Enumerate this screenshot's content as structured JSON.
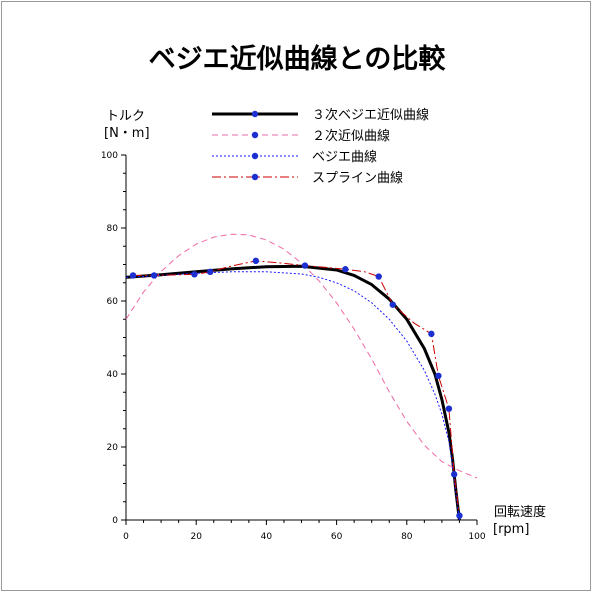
{
  "chart_data": {
    "type": "line",
    "title": "ベジエ近似曲線との比較",
    "ylabel_line1": "トルク",
    "ylabel_line2": "[N・m]",
    "xlabel_line1": "回転速度",
    "xlabel_line2": "[rpm]",
    "xlim": [
      0,
      100
    ],
    "ylim": [
      0,
      100
    ],
    "xticks": [
      0,
      20,
      40,
      60,
      80,
      100
    ],
    "yticks": [
      0,
      20,
      40,
      60,
      80,
      100
    ],
    "grid": false,
    "legend_position": "top",
    "points": {
      "x": [
        2,
        8,
        19.5,
        24,
        37,
        51,
        62.5,
        72,
        76,
        87,
        89,
        92,
        93.5,
        95
      ],
      "y": [
        67,
        67,
        67.3,
        68,
        71,
        69.7,
        68.7,
        66.7,
        59,
        51,
        39.5,
        30.5,
        12.5,
        1.2
      ],
      "color": "#1c2fd0"
    },
    "series": [
      {
        "name": "３次ベジエ近似曲線",
        "style": "solid-thick",
        "color": "#000000",
        "x": [
          0,
          10,
          20,
          30,
          40,
          50,
          60,
          65,
          70,
          75,
          80,
          85,
          88,
          90,
          92,
          93,
          94,
          95
        ],
        "y": [
          66.5,
          67.2,
          68,
          68.8,
          69.4,
          69.5,
          68.5,
          67,
          64.5,
          60.5,
          55,
          47,
          40,
          33,
          24,
          17,
          8,
          0
        ]
      },
      {
        "name": "２次近似曲線",
        "style": "dashed",
        "color": "#ee6aa8",
        "x": [
          0,
          5,
          10,
          15,
          20,
          25,
          30,
          35,
          40,
          45,
          50,
          55,
          60,
          65,
          70,
          75,
          80,
          85,
          90,
          95,
          100
        ],
        "y": [
          55,
          62.5,
          68.1,
          72.4,
          75.6,
          77.5,
          78.3,
          78.1,
          76.7,
          74.2,
          70.4,
          65.5,
          59.5,
          52.3,
          44.1,
          35.1,
          27,
          20.5,
          16,
          13.5,
          11.5
        ]
      },
      {
        "name": "ベジエ曲線",
        "style": "dotted",
        "color": "#1a1aff",
        "x": [
          0,
          10,
          20,
          30,
          40,
          50,
          55,
          60,
          65,
          70,
          75,
          80,
          85,
          88,
          90,
          92,
          93,
          94,
          95
        ],
        "y": [
          66.5,
          67,
          67.6,
          68,
          68,
          67.4,
          66.5,
          65,
          62.8,
          59.5,
          55,
          49,
          41,
          34.5,
          29,
          21.5,
          15,
          7.5,
          0
        ]
      },
      {
        "name": "スプライン曲線",
        "style": "dash-dot",
        "color": "#cc0000",
        "x": [
          2,
          8,
          19.5,
          24,
          30,
          37,
          44,
          51,
          57,
          62.5,
          68,
          72,
          76,
          82,
          87,
          89,
          92,
          93.5,
          95
        ],
        "y": [
          67,
          67,
          67.3,
          68,
          69.6,
          71,
          70.4,
          69.7,
          69.2,
          68.7,
          68,
          66.7,
          59,
          54,
          51,
          39.5,
          30.5,
          12.5,
          1.2
        ]
      }
    ]
  }
}
